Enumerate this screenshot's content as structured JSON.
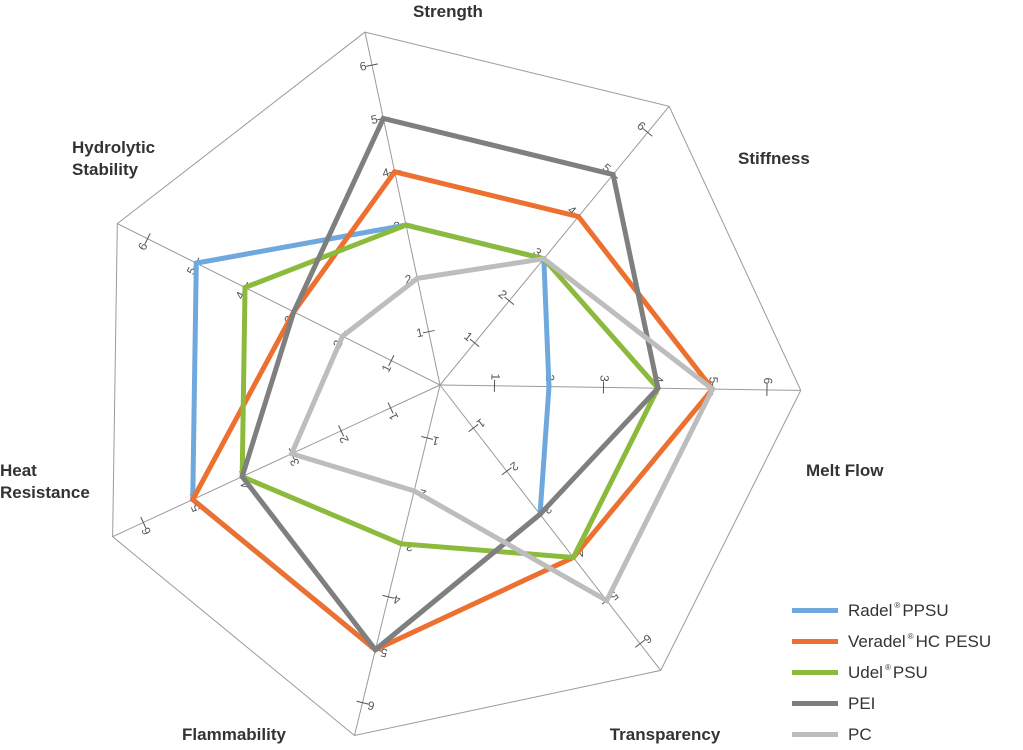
{
  "chart_data": {
    "type": "radar",
    "axes": [
      "Strength",
      "Stiffness",
      "Melt Flow",
      "Transparency",
      "Flammability",
      "Heat Resistance",
      "Hydrolytic Stability"
    ],
    "axis_label_lines": [
      [
        "Strength"
      ],
      [
        "Stiffness"
      ],
      [
        "Melt Flow"
      ],
      [
        "Transparency"
      ],
      [
        "Flammability"
      ],
      [
        "Heat",
        "Resistance"
      ],
      [
        "Hydrolytic",
        "Stability"
      ]
    ],
    "scale": {
      "min": 0,
      "max": 6
    },
    "tick_labels": [
      "1",
      "2",
      "3",
      "4",
      "5",
      "6"
    ],
    "series": [
      {
        "name": "Radel PPSU",
        "brand": "Radel",
        "suffix": "PPSU",
        "color": "#6fa8dc",
        "values": [
          3,
          3,
          2,
          3,
          5,
          5,
          5
        ]
      },
      {
        "name": "Veradel HC PESU",
        "brand": "Veradel",
        "suffix": "HC PESU",
        "color": "#ec7030",
        "values": [
          4,
          4,
          5,
          4,
          5,
          5,
          3
        ]
      },
      {
        "name": "Udel PSU",
        "brand": "Udel",
        "suffix": "PSU",
        "color": "#8cba3c",
        "values": [
          3,
          3,
          4,
          4,
          3,
          4,
          4
        ]
      },
      {
        "name": "PEI",
        "brand": "PEI",
        "suffix": "",
        "color": "#7f7f7f",
        "values": [
          5,
          5,
          4,
          3,
          5,
          4,
          3
        ]
      },
      {
        "name": "PC",
        "brand": "PC",
        "suffix": "",
        "color": "#bdbdbd",
        "values": [
          2,
          3,
          5,
          5,
          2,
          3,
          2
        ]
      }
    ]
  },
  "legend": {
    "registered_mark": "®",
    "items": [
      {
        "brand": "Radel",
        "suffix": "PPSU",
        "registered": true
      },
      {
        "brand": "Veradel",
        "suffix": "HC PESU",
        "registered": true
      },
      {
        "brand": "Udel",
        "suffix": "PSU",
        "registered": true
      },
      {
        "brand": "PEI",
        "suffix": "",
        "registered": false
      },
      {
        "brand": "PC",
        "suffix": "",
        "registered": false
      }
    ]
  }
}
